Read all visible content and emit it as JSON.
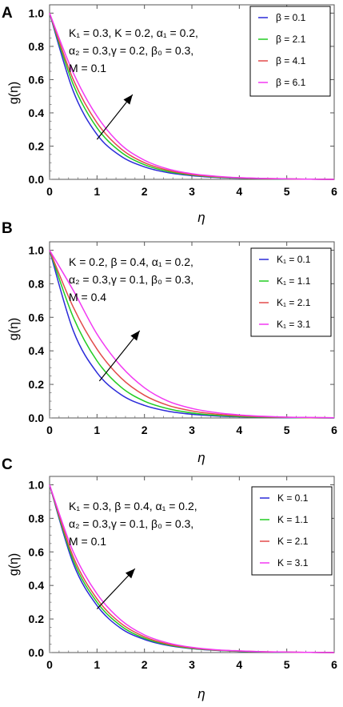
{
  "chart_data": [
    {
      "type": "line",
      "panel_label": "A",
      "xlabel": "η",
      "ylabel": "g(η)",
      "xlim": [
        0,
        6
      ],
      "ylim": [
        0,
        1.05
      ],
      "x_ticks": [
        "0",
        "1",
        "2",
        "3",
        "4",
        "5",
        "6"
      ],
      "y_ticks": [
        "0.0",
        "0.2",
        "0.4",
        "0.6",
        "0.8",
        "1.0"
      ],
      "parameters": [
        "K₁ = 0.3, K = 0.2, α₁ = 0.2,",
        "α₂ = 0.3,γ = 0.2, β₀ = 0.3,",
        "M = 0.1"
      ],
      "legend_position": "top-right",
      "arrow": {
        "from": [
          1.0,
          0.24
        ],
        "to": [
          1.75,
          0.51
        ]
      },
      "series": [
        {
          "name": "β = 0.1",
          "color": "#2b2bd9",
          "x": [
            0,
            0.5,
            1,
            1.5,
            2,
            2.5,
            3,
            3.5,
            4,
            4.5,
            5,
            5.5,
            6
          ],
          "values": [
            1.0,
            0.53,
            0.27,
            0.14,
            0.075,
            0.04,
            0.022,
            0.012,
            0.007,
            0.004,
            0.002,
            0.001,
            0.0
          ]
        },
        {
          "name": "β = 2.1",
          "color": "#22cc22",
          "x": [
            0,
            0.5,
            1,
            1.5,
            2,
            2.5,
            3,
            3.5,
            4,
            4.5,
            5,
            5.5,
            6
          ],
          "values": [
            1.0,
            0.57,
            0.31,
            0.165,
            0.088,
            0.047,
            0.026,
            0.014,
            0.008,
            0.004,
            0.002,
            0.001,
            0.0
          ]
        },
        {
          "name": "β = 4.1",
          "color": "#e24a4a",
          "x": [
            0,
            0.5,
            1,
            1.5,
            2,
            2.5,
            3,
            3.5,
            4,
            4.5,
            5,
            5.5,
            6
          ],
          "values": [
            1.0,
            0.6,
            0.34,
            0.185,
            0.1,
            0.054,
            0.029,
            0.016,
            0.009,
            0.005,
            0.003,
            0.001,
            0.0
          ]
        },
        {
          "name": "β = 6.1",
          "color": "#f238f2",
          "x": [
            0,
            0.5,
            1,
            1.5,
            2,
            2.5,
            3,
            3.5,
            4,
            4.5,
            5,
            5.5,
            6
          ],
          "values": [
            1.0,
            0.64,
            0.38,
            0.21,
            0.115,
            0.062,
            0.034,
            0.019,
            0.01,
            0.006,
            0.003,
            0.001,
            0.0
          ]
        }
      ]
    },
    {
      "type": "line",
      "panel_label": "B",
      "xlabel": "η",
      "ylabel": "g(η)",
      "xlim": [
        0,
        6
      ],
      "ylim": [
        0,
        1.05
      ],
      "x_ticks": [
        "0",
        "1",
        "2",
        "3",
        "4",
        "5",
        "6"
      ],
      "y_ticks": [
        "0.0",
        "0.2",
        "0.4",
        "0.6",
        "0.8",
        "1.0"
      ],
      "parameters": [
        "K = 0.2, β = 0.4, α₁ = 0.2,",
        "α₂ = 0.3,γ = 0.1, β₀ = 0.3,",
        "M = 0.4"
      ],
      "legend_position": "top-right",
      "arrow": {
        "from": [
          1.05,
          0.22
        ],
        "to": [
          1.9,
          0.52
        ]
      },
      "series": [
        {
          "name": "K₁ = 0.1",
          "color": "#2b2bd9",
          "x": [
            0,
            0.5,
            1,
            1.5,
            2,
            2.5,
            3,
            3.5,
            4,
            4.5,
            5,
            5.5,
            6
          ],
          "values": [
            1.0,
            0.52,
            0.27,
            0.14,
            0.075,
            0.04,
            0.022,
            0.012,
            0.007,
            0.004,
            0.002,
            0.001,
            0.0
          ]
        },
        {
          "name": "K₁ = 1.1",
          "color": "#22cc22",
          "x": [
            0,
            0.5,
            1,
            1.5,
            2,
            2.5,
            3,
            3.5,
            4,
            4.5,
            5,
            5.5,
            6
          ],
          "values": [
            1.0,
            0.6,
            0.34,
            0.185,
            0.1,
            0.055,
            0.03,
            0.016,
            0.009,
            0.005,
            0.003,
            0.001,
            0.0
          ]
        },
        {
          "name": "K₁ = 2.1",
          "color": "#e24a4a",
          "x": [
            0,
            0.5,
            1,
            1.5,
            2,
            2.5,
            3,
            3.5,
            4,
            4.5,
            5,
            5.5,
            6
          ],
          "values": [
            1.0,
            0.66,
            0.41,
            0.24,
            0.135,
            0.075,
            0.042,
            0.023,
            0.013,
            0.007,
            0.004,
            0.002,
            0.001
          ]
        },
        {
          "name": "K₁ = 3.1",
          "color": "#f238f2",
          "x": [
            0,
            0.5,
            1,
            1.5,
            2,
            2.5,
            3,
            3.5,
            4,
            4.5,
            5,
            5.5,
            6
          ],
          "values": [
            1.0,
            0.76,
            0.5,
            0.31,
            0.18,
            0.1,
            0.057,
            0.032,
            0.018,
            0.01,
            0.005,
            0.003,
            0.001
          ]
        }
      ]
    },
    {
      "type": "line",
      "panel_label": "C",
      "xlabel": "η",
      "ylabel": "g(η)",
      "xlim": [
        0,
        6
      ],
      "ylim": [
        0,
        1.05
      ],
      "x_ticks": [
        "0",
        "1",
        "2",
        "3",
        "4",
        "5",
        "6"
      ],
      "y_ticks": [
        "0.0",
        "0.2",
        "0.4",
        "0.6",
        "0.8",
        "1.0"
      ],
      "parameters": [
        "K₁ = 0.3, β = 0.4, α₁ = 0.2,",
        "α₂ = 0.3,γ = 0.1, β₀ = 0.3,",
        "M = 0.1"
      ],
      "legend_position": "top-right",
      "arrow": {
        "from": [
          1.0,
          0.26
        ],
        "to": [
          1.8,
          0.5
        ]
      },
      "series": [
        {
          "name": "K = 0.1",
          "color": "#2b2bd9",
          "x": [
            0,
            0.5,
            1,
            1.5,
            2,
            2.5,
            3,
            3.5,
            4,
            4.5,
            5,
            5.5,
            6
          ],
          "values": [
            1.0,
            0.53,
            0.28,
            0.145,
            0.078,
            0.042,
            0.023,
            0.013,
            0.007,
            0.004,
            0.002,
            0.001,
            0.0
          ]
        },
        {
          "name": "K =  1.1",
          "color": "#22cc22",
          "x": [
            0,
            0.5,
            1,
            1.5,
            2,
            2.5,
            3,
            3.5,
            4,
            4.5,
            5,
            5.5,
            6
          ],
          "values": [
            1.0,
            0.55,
            0.3,
            0.16,
            0.085,
            0.046,
            0.025,
            0.014,
            0.008,
            0.004,
            0.002,
            0.001,
            0.0
          ]
        },
        {
          "name": "K = 2.1",
          "color": "#e24a4a",
          "x": [
            0,
            0.5,
            1,
            1.5,
            2,
            2.5,
            3,
            3.5,
            4,
            4.5,
            5,
            5.5,
            6
          ],
          "values": [
            1.0,
            0.57,
            0.32,
            0.175,
            0.094,
            0.05,
            0.028,
            0.015,
            0.009,
            0.005,
            0.003,
            0.001,
            0.0
          ]
        },
        {
          "name": "K = 3.1",
          "color": "#f238f2",
          "x": [
            0,
            0.5,
            1,
            1.5,
            2,
            2.5,
            3,
            3.5,
            4,
            4.5,
            5,
            5.5,
            6
          ],
          "values": [
            1.0,
            0.6,
            0.35,
            0.195,
            0.105,
            0.057,
            0.031,
            0.017,
            0.01,
            0.005,
            0.003,
            0.001,
            0.0
          ]
        }
      ]
    }
  ]
}
